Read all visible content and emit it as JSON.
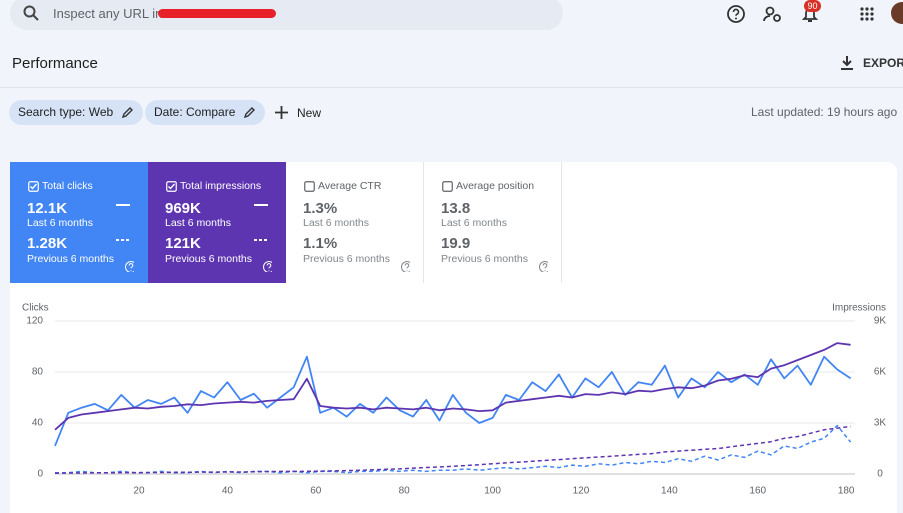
{
  "header": {
    "search_placeholder": "Inspect any URL in",
    "notifications": "90"
  },
  "toolbar": {
    "title": "Performance",
    "export": "EXPORT",
    "chips": [
      "Search type: Web",
      "Date: Compare"
    ],
    "new": "New",
    "last_updated": "Last updated: 19 hours ago"
  },
  "metrics": [
    {
      "label": "Total clicks",
      "value": "12.1K",
      "period": "Last 6 months",
      "previous_value": "1.28K",
      "previous_period": "Previous 6 months",
      "selected": true,
      "color": "#4285f4"
    },
    {
      "label": "Total impressions",
      "value": "969K",
      "period": "Last 6 months",
      "previous_value": "121K",
      "previous_period": "Previous 6 months",
      "selected": true,
      "color": "#5e35b1"
    },
    {
      "label": "Average CTR",
      "value": "1.3%",
      "period": "Last 6 months",
      "previous_value": "1.1%",
      "previous_period": "Previous 6 months",
      "selected": false,
      "color": "#ffffff"
    },
    {
      "label": "Average position",
      "value": "13.8",
      "period": "Last 6 months",
      "previous_value": "19.9",
      "previous_period": "Previous 6 months",
      "selected": false,
      "color": "#ffffff"
    }
  ],
  "chart_data": {
    "type": "line",
    "ylabel": "Clicks",
    "y2label": "Impressions",
    "x": [
      1,
      4,
      7,
      10,
      13,
      16,
      19,
      22,
      25,
      28,
      31,
      34,
      37,
      40,
      43,
      46,
      49,
      52,
      55,
      58,
      61,
      64,
      67,
      70,
      73,
      76,
      79,
      82,
      85,
      88,
      91,
      94,
      97,
      100,
      103,
      106,
      109,
      112,
      115,
      118,
      121,
      124,
      127,
      130,
      133,
      136,
      139,
      142,
      145,
      148,
      151,
      154,
      157,
      160,
      163,
      166,
      169,
      172,
      175,
      178,
      181
    ],
    "xlim": [
      1,
      182
    ],
    "xticks": [
      20,
      40,
      60,
      80,
      100,
      120,
      140,
      160,
      180
    ],
    "ylim": [
      0,
      120
    ],
    "yticks": [
      0,
      40,
      80,
      120
    ],
    "y2lim": [
      0,
      9000
    ],
    "y2ticks": [
      0,
      {
        "value": 3000,
        "label": "3K"
      },
      {
        "value": 6000,
        "label": "6K"
      },
      {
        "value": 9000,
        "label": "9K"
      }
    ],
    "grid": true,
    "series": [
      {
        "color": "#4285f4",
        "dashed": false,
        "values": [
          22,
          48,
          52,
          55,
          50,
          62,
          52,
          58,
          55,
          60,
          48,
          65,
          60,
          72,
          58,
          63,
          52,
          60,
          68,
          92,
          48,
          52,
          45,
          55,
          48,
          60,
          50,
          45,
          58,
          42,
          62,
          48,
          40,
          44,
          62,
          58,
          72,
          65,
          78,
          60,
          75,
          68,
          80,
          62,
          72,
          70,
          85,
          60,
          75,
          68,
          80,
          72,
          78,
          70,
          90,
          75,
          85,
          70,
          92,
          82,
          75
        ]
      },
      {
        "color": "#5e35b1",
        "dashed": false,
        "axis": "y2",
        "values": [
          2600,
          3300,
          3500,
          3600,
          3700,
          3800,
          3900,
          3850,
          3950,
          4000,
          4100,
          4050,
          4150,
          4200,
          4250,
          4200,
          4300,
          4350,
          4400,
          5600,
          4000,
          3900,
          3850,
          3900,
          3800,
          3900,
          3850,
          3800,
          3900,
          3750,
          3850,
          3800,
          3700,
          3750,
          4200,
          4300,
          4400,
          4500,
          4600,
          4500,
          4700,
          4650,
          4800,
          4700,
          4900,
          4850,
          5000,
          5100,
          5050,
          5200,
          5500,
          5600,
          5800,
          5700,
          6200,
          6400,
          6700,
          7000,
          7300,
          7700,
          7600
        ]
      },
      {
        "color": "#4285f4",
        "dashed": true,
        "values": [
          1,
          1,
          2,
          1,
          1,
          2,
          1,
          1,
          2,
          1,
          1,
          2,
          1,
          2,
          1,
          2,
          2,
          1,
          2,
          1,
          2,
          2,
          1,
          2,
          2,
          3,
          2,
          3,
          2,
          3,
          3,
          4,
          3,
          4,
          5,
          4,
          5,
          6,
          5,
          7,
          6,
          8,
          7,
          9,
          8,
          10,
          9,
          12,
          10,
          14,
          11,
          15,
          13,
          18,
          15,
          22,
          20,
          25,
          28,
          38,
          25
        ]
      },
      {
        "color": "#5e35b1",
        "dashed": true,
        "axis": "y2",
        "values": [
          50,
          60,
          60,
          70,
          70,
          80,
          80,
          90,
          90,
          100,
          100,
          110,
          110,
          120,
          120,
          130,
          140,
          150,
          150,
          160,
          170,
          180,
          200,
          220,
          250,
          280,
          300,
          350,
          380,
          420,
          450,
          500,
          550,
          600,
          650,
          700,
          750,
          800,
          850,
          900,
          950,
          1000,
          1050,
          1100,
          1150,
          1200,
          1300,
          1350,
          1400,
          1450,
          1500,
          1600,
          1700,
          1800,
          1900,
          2100,
          2200,
          2400,
          2600,
          2700,
          2800
        ]
      }
    ]
  }
}
